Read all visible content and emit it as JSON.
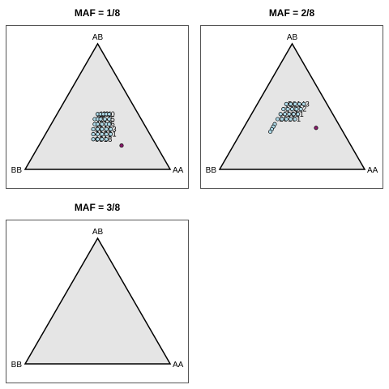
{
  "chart_data": [
    {
      "type": "scatter",
      "title": "MAF = 1/8",
      "vertex_labels": {
        "top": "AB",
        "left": "BB",
        "right": "AA"
      },
      "triangle_fill": "#e5e5e5",
      "series": [
        {
          "color": "#add8e6",
          "points": [
            {
              "AA": 0.28,
              "AB": 0.44,
              "label": "1"
            },
            {
              "AA": 0.3,
              "AB": 0.44,
              "label": "3"
            },
            {
              "AA": 0.32,
              "AB": 0.44,
              "label": "9"
            },
            {
              "AA": 0.34,
              "AB": 0.44,
              "label": "1"
            },
            {
              "AA": 0.36,
              "AB": 0.44,
              "label": "0"
            },
            {
              "AA": 0.28,
              "AB": 0.4,
              "label": "7"
            },
            {
              "AA": 0.3,
              "AB": 0.4,
              "label": "2"
            },
            {
              "AA": 0.32,
              "AB": 0.4,
              "label": "1"
            },
            {
              "AA": 0.35,
              "AB": 0.4,
              "label": "4"
            },
            {
              "AA": 0.38,
              "AB": 0.4,
              "label": "5"
            },
            {
              "AA": 0.3,
              "AB": 0.36,
              "label": "1"
            },
            {
              "AA": 0.32,
              "AB": 0.36,
              "label": "3"
            },
            {
              "AA": 0.35,
              "AB": 0.36,
              "label": "1"
            },
            {
              "AA": 0.38,
              "AB": 0.36,
              "label": "7"
            },
            {
              "AA": 0.4,
              "AB": 0.36,
              "label": "6"
            },
            {
              "AA": 0.31,
              "AB": 0.32,
              "label": "2"
            },
            {
              "AA": 0.34,
              "AB": 0.32,
              "label": "8"
            },
            {
              "AA": 0.37,
              "AB": 0.32,
              "label": "1"
            },
            {
              "AA": 0.4,
              "AB": 0.32,
              "label": "5"
            },
            {
              "AA": 0.43,
              "AB": 0.32,
              "label": "3"
            },
            {
              "AA": 0.33,
              "AB": 0.28,
              "label": "4"
            },
            {
              "AA": 0.36,
              "AB": 0.28,
              "label": "1"
            },
            {
              "AA": 0.39,
              "AB": 0.28,
              "label": "9"
            },
            {
              "AA": 0.42,
              "AB": 0.28,
              "label": "2"
            },
            {
              "AA": 0.45,
              "AB": 0.28,
              "label": "1"
            },
            {
              "AA": 0.35,
              "AB": 0.24,
              "label": "6"
            },
            {
              "AA": 0.38,
              "AB": 0.24,
              "label": "3"
            },
            {
              "AA": 0.41,
              "AB": 0.24,
              "label": "1"
            },
            {
              "AA": 0.44,
              "AB": 0.24,
              "label": "8"
            }
          ]
        },
        {
          "color": "#8b1a6b",
          "points": [
            {
              "AA": 0.57,
              "AB": 0.19,
              "label": ""
            }
          ]
        }
      ]
    },
    {
      "type": "scatter",
      "title": "MAF = 2/8",
      "vertex_labels": {
        "top": "AB",
        "left": "BB",
        "right": "AA"
      },
      "triangle_fill": "#e5e5e5",
      "series": [
        {
          "color": "#add8e6",
          "points": [
            {
              "AA": 0.2,
              "AB": 0.52,
              "label": "5"
            },
            {
              "AA": 0.23,
              "AB": 0.52,
              "label": "0"
            },
            {
              "AA": 0.26,
              "AB": 0.52,
              "label": "1"
            },
            {
              "AA": 0.29,
              "AB": 0.52,
              "label": "4"
            },
            {
              "AA": 0.32,
              "AB": 0.52,
              "label": "3"
            },
            {
              "AA": 0.2,
              "AB": 0.48,
              "label": "1"
            },
            {
              "AA": 0.23,
              "AB": 0.48,
              "label": "7"
            },
            {
              "AA": 0.26,
              "AB": 0.48,
              "label": "3"
            },
            {
              "AA": 0.29,
              "AB": 0.48,
              "label": "1"
            },
            {
              "AA": 0.32,
              "AB": 0.48,
              "label": "2"
            },
            {
              "AA": 0.2,
              "AB": 0.44,
              "label": "4"
            },
            {
              "AA": 0.23,
              "AB": 0.44,
              "label": "1"
            },
            {
              "AA": 0.26,
              "AB": 0.44,
              "label": "6"
            },
            {
              "AA": 0.29,
              "AB": 0.44,
              "label": "5"
            },
            {
              "AA": 0.32,
              "AB": 0.44,
              "label": "1"
            },
            {
              "AA": 0.2,
              "AB": 0.4,
              "label": "2"
            },
            {
              "AA": 0.23,
              "AB": 0.4,
              "label": "8"
            },
            {
              "AA": 0.26,
              "AB": 0.4,
              "label": "1"
            },
            {
              "AA": 0.29,
              "AB": 0.4,
              "label": "9"
            },
            {
              "AA": 0.32,
              "AB": 0.4,
              "label": "1"
            },
            {
              "AA": 0.2,
              "AB": 0.36,
              "label": ""
            },
            {
              "AA": 0.2,
              "AB": 0.34,
              "label": ""
            },
            {
              "AA": 0.2,
              "AB": 0.32,
              "label": ""
            },
            {
              "AA": 0.2,
              "AB": 0.3,
              "label": ""
            }
          ]
        },
        {
          "color": "#8b1a6b",
          "points": [
            {
              "AA": 0.5,
              "AB": 0.33,
              "label": ""
            }
          ]
        }
      ]
    },
    {
      "type": "scatter",
      "title": "MAF = 3/8",
      "vertex_labels": {
        "top": "AB",
        "left": "BB",
        "right": "AA"
      },
      "triangle_fill": "#e5e5e5",
      "series": []
    }
  ]
}
